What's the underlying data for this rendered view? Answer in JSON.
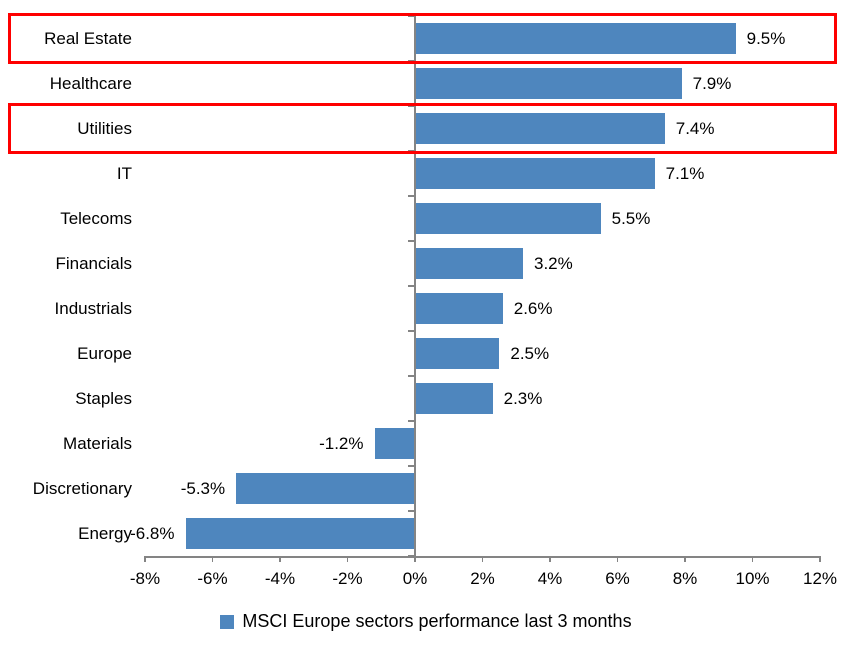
{
  "chart_data": {
    "type": "bar",
    "orientation": "horizontal",
    "title": "",
    "categories": [
      "Real Estate",
      "Healthcare",
      "Utilities",
      "IT",
      "Telecoms",
      "Financials",
      "Industrials",
      "Europe",
      "Staples",
      "Materials",
      "Discretionary",
      "Energy"
    ],
    "values": [
      9.5,
      7.9,
      7.4,
      7.1,
      5.5,
      3.2,
      2.6,
      2.5,
      2.3,
      -1.2,
      -5.3,
      -6.8
    ],
    "value_labels": [
      "9.5%",
      "7.9%",
      "7.4%",
      "7.1%",
      "5.5%",
      "3.2%",
      "2.6%",
      "2.5%",
      "2.3%",
      "-1.2%",
      "-5.3%",
      "-6.8%"
    ],
    "x_tick_values": [
      -8,
      -6,
      -4,
      -2,
      0,
      2,
      4,
      6,
      8,
      10,
      12
    ],
    "x_tick_labels": [
      "-8%",
      "-6%",
      "-4%",
      "-2%",
      "0%",
      "2%",
      "4%",
      "6%",
      "8%",
      "10%",
      "12%"
    ],
    "xlim": [
      -8,
      12
    ],
    "grid": false,
    "legend": {
      "label": "MSCI Europe sectors performance last 3 months",
      "position": "bottom"
    },
    "colors": {
      "bar": "#4e86be",
      "axis": "#848484",
      "text": "#000000",
      "highlight_box": "#fe0000",
      "background": "#ffffff"
    },
    "annotations": {
      "highlighted_categories": [
        "Real Estate",
        "Utilities"
      ]
    }
  }
}
